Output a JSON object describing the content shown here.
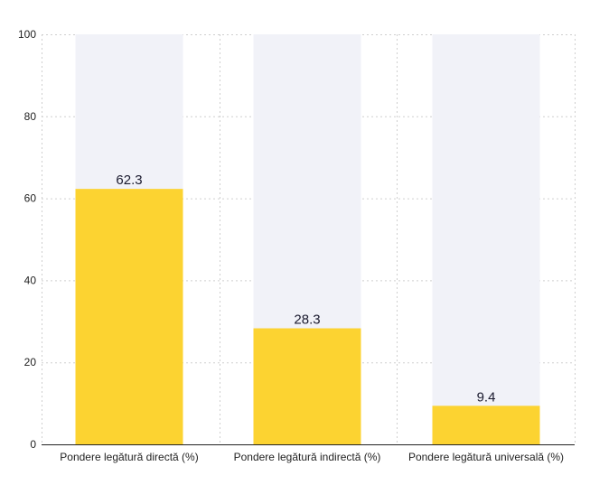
{
  "chart_data": {
    "type": "bar",
    "categories": [
      "Pondere legătură directă (%)",
      "Pondere legătură indirectă (%)",
      "Pondere legătură universală (%)"
    ],
    "values": [
      62.3,
      28.3,
      9.4
    ],
    "data_labels": [
      "62.3",
      "28.3",
      "9.4"
    ],
    "background_max": 100,
    "ylim": [
      0,
      100
    ],
    "yticks": [
      0,
      20,
      40,
      60,
      80,
      100
    ],
    "grid": true,
    "title": "",
    "xlabel": "",
    "ylabel": "",
    "colors": {
      "bar": "#fcd331",
      "background_bar": "#f1f2f8",
      "grid": "#cfcfcf",
      "axis": "#222222"
    }
  }
}
